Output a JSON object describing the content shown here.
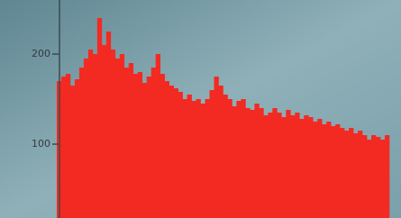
{
  "chart_data": {
    "type": "bar",
    "color": "#f22a22",
    "values": [
      170,
      175,
      178,
      165,
      172,
      185,
      195,
      205,
      200,
      240,
      210,
      225,
      205,
      195,
      200,
      185,
      190,
      178,
      180,
      168,
      175,
      185,
      200,
      178,
      170,
      165,
      162,
      158,
      150,
      155,
      148,
      150,
      145,
      150,
      160,
      175,
      165,
      155,
      150,
      142,
      148,
      150,
      140,
      138,
      145,
      140,
      132,
      135,
      140,
      135,
      130,
      138,
      132,
      135,
      128,
      132,
      130,
      125,
      128,
      122,
      125,
      120,
      122,
      118,
      115,
      118,
      112,
      115,
      110,
      105,
      110,
      108,
      105,
      110
    ],
    "ylim": [
      18,
      260
    ],
    "yticks": [
      100,
      200
    ]
  }
}
